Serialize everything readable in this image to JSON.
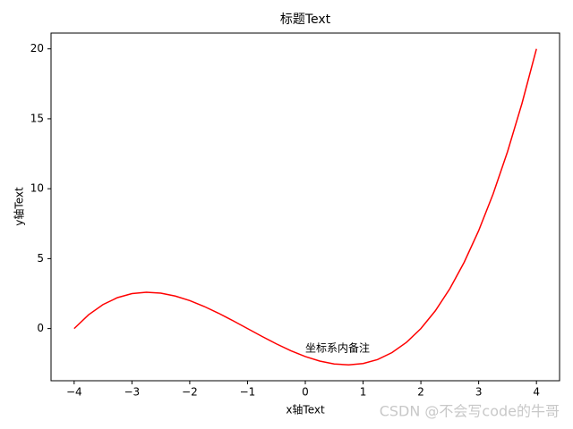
{
  "chart_data": {
    "type": "line",
    "title": "标题Text",
    "xlabel": "x轴Text",
    "ylabel": "y轴Text",
    "annotation": {
      "text": "坐标系内备注",
      "x": 0,
      "y": -2
    },
    "watermark": "CSDN @不会写code的牛哥",
    "x": [
      -4,
      -3.75,
      -3.5,
      -3.25,
      -3,
      -2.75,
      -2.5,
      -2.25,
      -2,
      -1.75,
      -1.5,
      -1.25,
      -1,
      -0.75,
      -0.5,
      -0.25,
      0,
      0.25,
      0.5,
      0.75,
      1,
      1.25,
      1.5,
      1.75,
      2,
      2.25,
      2.5,
      2.75,
      3,
      3.25,
      3.5,
      3.75,
      4
    ],
    "series": [
      {
        "color": "#ff0000",
        "values": [
          0,
          0.98828125,
          1.71875,
          2.21484375,
          2.5,
          2.59765625,
          2.53125,
          2.32421875,
          2,
          1.58203125,
          1.09375,
          0.55859375,
          0,
          -0.55859375,
          -1.09375,
          -1.58203125,
          -2,
          -2.32421875,
          -2.53125,
          -2.59765625,
          -2.5,
          -2.21484375,
          -1.71875,
          -0.98828125,
          0,
          1.26953125,
          2.84375,
          4.74609375,
          7,
          9.62890625,
          12.65625,
          16.10546875,
          20
        ]
      }
    ],
    "xlim": [
      -4.4,
      4.4
    ],
    "ylim": [
      -3.73,
      21.13
    ],
    "xticks": [
      {
        "value": -4,
        "label": "−4"
      },
      {
        "value": -3,
        "label": "−3"
      },
      {
        "value": -2,
        "label": "−2"
      },
      {
        "value": -1,
        "label": "−1"
      },
      0,
      1,
      2,
      3,
      4
    ],
    "yticks": [
      0,
      5,
      10,
      15,
      20
    ],
    "grid": false
  }
}
